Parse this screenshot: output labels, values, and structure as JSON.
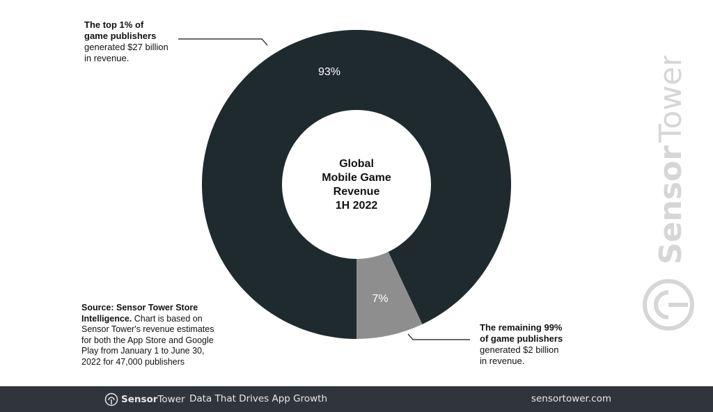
{
  "chart_data": {
    "type": "pie",
    "variant": "donut",
    "title": "Global Mobile Game Revenue 1H 2022",
    "title_lines": [
      "Global",
      "Mobile Game",
      "Revenue",
      "1H 2022"
    ],
    "slices": [
      {
        "name": "Top 1% of game publishers",
        "value": 93,
        "label": "93%",
        "color": "#1e2a2e"
      },
      {
        "name": "Remaining 99% of game publishers",
        "value": 7,
        "label": "7%",
        "color": "#8e8e8e"
      }
    ]
  },
  "annotations": {
    "top": {
      "bold1": "The top 1% of",
      "bold2": "game publishers",
      "line1": "generated $27 billion",
      "line2": "in revenue."
    },
    "bottom": {
      "bold1": "The remaining 99%",
      "bold2": "of game publishers",
      "line1": "generated $2 billion",
      "line2": "in revenue."
    }
  },
  "source": {
    "bold": "Source: Sensor Tower Store Intelligence.",
    "text": " Chart is based on Sensor Tower's revenue estimates for both the App Store and Google Play from January 1 to June 30, 2022 for 47,000 publishers"
  },
  "watermark": {
    "text": "Sensor Tower"
  },
  "footer": {
    "brand_bold": "Sensor",
    "brand_light": "Tower",
    "tagline": "Data That Drives App Growth",
    "url": "sensortower.com"
  },
  "colors": {
    "footer_bg": "#30353c",
    "dark": "#1e2a2e",
    "grey": "#8e8e8e"
  }
}
